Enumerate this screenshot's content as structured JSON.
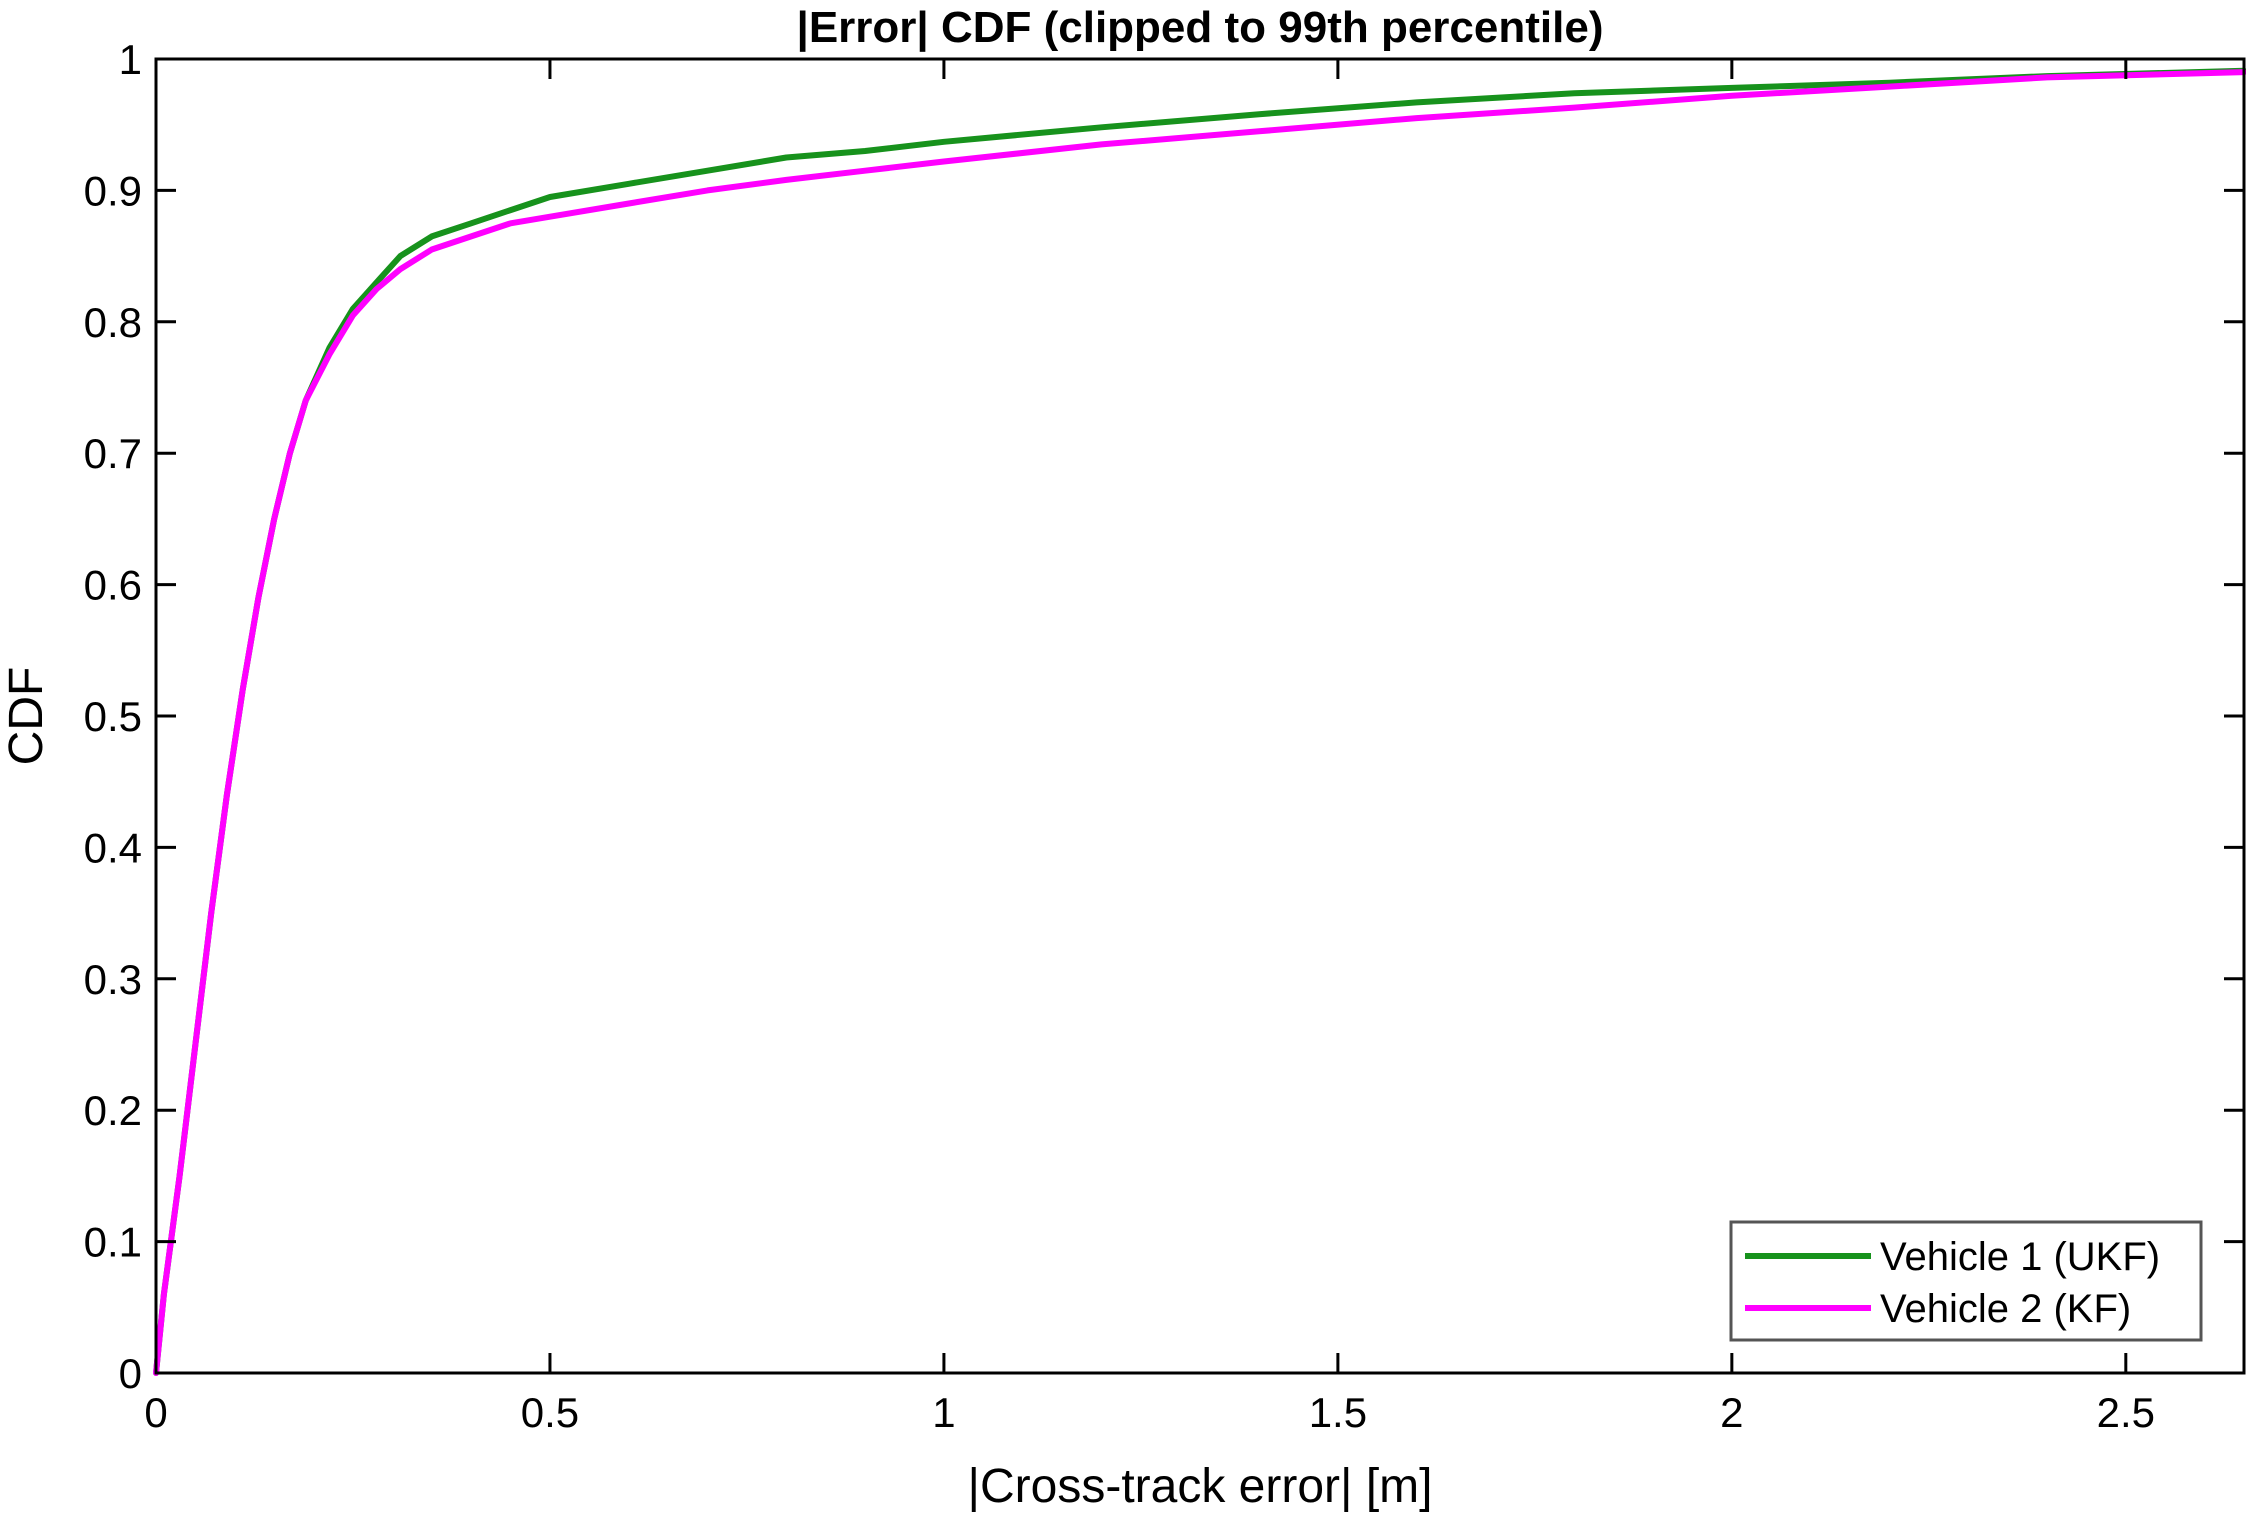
{
  "chart_data": {
    "type": "line",
    "title": "|Error| CDF (clipped to 99th percentile)",
    "xlabel": "|Cross-track error| [m]",
    "ylabel": "CDF",
    "xlim": [
      0,
      2.65
    ],
    "ylim": [
      0,
      1
    ],
    "xticks": [
      0,
      0.5,
      1,
      1.5,
      2,
      2.5
    ],
    "xtick_labels": [
      "0",
      "0.5",
      "1",
      "1.5",
      "2",
      "2.5"
    ],
    "yticks": [
      0,
      0.1,
      0.2,
      0.3,
      0.4,
      0.5,
      0.6,
      0.7,
      0.8,
      0.9,
      1
    ],
    "ytick_labels": [
      "0",
      "0.1",
      "0.2",
      "0.3",
      "0.4",
      "0.5",
      "0.6",
      "0.7",
      "0.8",
      "0.9",
      "1"
    ],
    "grid": false,
    "legend_position": "bottom-right",
    "series": [
      {
        "name": "Vehicle 1 (UKF)",
        "color": "#17921c",
        "x": [
          0,
          0.01,
          0.03,
          0.05,
          0.07,
          0.09,
          0.11,
          0.13,
          0.15,
          0.17,
          0.19,
          0.22,
          0.25,
          0.28,
          0.31,
          0.35,
          0.4,
          0.45,
          0.5,
          0.6,
          0.7,
          0.8,
          0.9,
          1.0,
          1.2,
          1.4,
          1.6,
          1.8,
          2.0,
          2.2,
          2.4,
          2.65
        ],
        "y": [
          0.0,
          0.06,
          0.15,
          0.25,
          0.35,
          0.44,
          0.52,
          0.59,
          0.65,
          0.7,
          0.74,
          0.78,
          0.81,
          0.83,
          0.85,
          0.865,
          0.875,
          0.885,
          0.895,
          0.905,
          0.915,
          0.925,
          0.93,
          0.937,
          0.948,
          0.958,
          0.967,
          0.974,
          0.978,
          0.982,
          0.987,
          0.991
        ]
      },
      {
        "name": "Vehicle 2 (KF)",
        "color": "#ff00ff",
        "x": [
          0,
          0.01,
          0.03,
          0.05,
          0.07,
          0.09,
          0.11,
          0.13,
          0.15,
          0.17,
          0.19,
          0.22,
          0.25,
          0.28,
          0.31,
          0.35,
          0.4,
          0.45,
          0.5,
          0.6,
          0.7,
          0.8,
          0.9,
          1.0,
          1.2,
          1.4,
          1.6,
          1.8,
          2.0,
          2.2,
          2.4,
          2.65
        ],
        "y": [
          0.0,
          0.06,
          0.15,
          0.25,
          0.35,
          0.44,
          0.52,
          0.59,
          0.65,
          0.7,
          0.74,
          0.775,
          0.805,
          0.825,
          0.84,
          0.855,
          0.865,
          0.875,
          0.88,
          0.89,
          0.9,
          0.908,
          0.915,
          0.922,
          0.935,
          0.945,
          0.955,
          0.963,
          0.972,
          0.979,
          0.986,
          0.99
        ]
      }
    ]
  }
}
